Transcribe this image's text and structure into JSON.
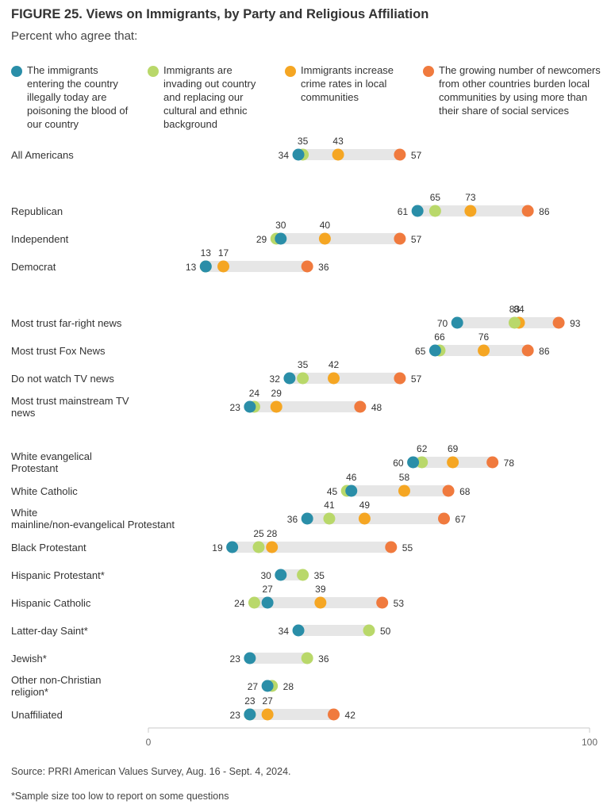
{
  "title": "FIGURE 25.  Views on Immigrants, by Party and Religious Affiliation",
  "subtitle": "Percent who agree that:",
  "source": "Source: PRRI American Values Survey, Aug. 16 - Sept. 4, 2024.",
  "footnote": "*Sample size too low to report on some questions",
  "chart_data": {
    "type": "scatter",
    "subtype": "dot-plot",
    "xlim": [
      0,
      100
    ],
    "x_ticks": [
      "0",
      "100"
    ],
    "grid": false,
    "legend_position": "top",
    "series": [
      {
        "key": "blood",
        "name": "The immigrants entering the country illegally today are poisoning the blood of our country",
        "color": "#2a8ea8"
      },
      {
        "key": "invading",
        "name": "Immigrants are invading out country and replacing our cultural and ethnic background",
        "color": "#b9d86a"
      },
      {
        "key": "crime",
        "name": "Immigrants increase crime rates in local communities",
        "color": "#f5a623"
      },
      {
        "key": "burden",
        "name": "The growing number of newcomers from other countries burden local communities by using more than their share of social services",
        "color": "#f07a3e"
      }
    ],
    "rows": [
      {
        "label": "All Americans",
        "values": {
          "blood": 34,
          "invading": 35,
          "crime": 43,
          "burden": 57
        }
      },
      {
        "label": "Republican",
        "values": {
          "blood": 61,
          "invading": 65,
          "crime": 73,
          "burden": 86
        }
      },
      {
        "label": "Independent",
        "values": {
          "blood": 30,
          "invading": 29,
          "crime": 40,
          "burden": 57
        }
      },
      {
        "label": "Democrat",
        "values": {
          "blood": 13,
          "invading": 13,
          "crime": 17,
          "burden": 36
        }
      },
      {
        "label": "Most trust far-right news",
        "values": {
          "blood": 70,
          "invading": 83,
          "crime": 84,
          "burden": 93
        }
      },
      {
        "label": "Most trust Fox News",
        "values": {
          "blood": 65,
          "invading": 66,
          "crime": 76,
          "burden": 86
        }
      },
      {
        "label": "Do not watch TV news",
        "values": {
          "blood": 32,
          "invading": 35,
          "crime": 42,
          "burden": 57
        }
      },
      {
        "label": "Most trust mainstream TV news",
        "values": {
          "blood": 23,
          "invading": 24,
          "crime": 29,
          "burden": 48
        }
      },
      {
        "label": "White evangelical Protestant",
        "values": {
          "blood": 60,
          "invading": 62,
          "crime": 69,
          "burden": 78
        }
      },
      {
        "label": "White Catholic",
        "values": {
          "blood": 46,
          "invading": 45,
          "crime": 58,
          "burden": 68
        }
      },
      {
        "label": "White mainline/non-evangelical Protestant",
        "values": {
          "blood": 36,
          "invading": 41,
          "crime": 49,
          "burden": 67
        }
      },
      {
        "label": "Black Protestant",
        "values": {
          "blood": 19,
          "invading": 25,
          "crime": 28,
          "burden": 55
        }
      },
      {
        "label": "Hispanic Protestant*",
        "values": {
          "blood": 30,
          "invading": 35
        }
      },
      {
        "label": "Hispanic Catholic",
        "values": {
          "blood": 27,
          "invading": 24,
          "crime": 39,
          "burden": 53
        }
      },
      {
        "label": "Latter-day Saint*",
        "values": {
          "blood": 34,
          "invading": 50
        }
      },
      {
        "label": "Jewish*",
        "values": {
          "blood": 23,
          "invading": 36
        }
      },
      {
        "label": "Other non-Christian religion*",
        "values": {
          "blood": 27,
          "invading": 28
        }
      },
      {
        "label": "Unaffiliated",
        "values": {
          "blood": 23,
          "invading": 23,
          "crime": 27,
          "burden": 42
        }
      }
    ]
  }
}
